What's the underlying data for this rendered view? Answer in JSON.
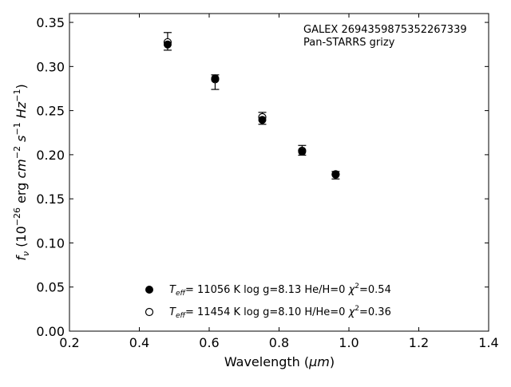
{
  "chart_data": {
    "type": "scatter",
    "xlabel_main": "Wavelength (",
    "xlabel_unit": "μm",
    "xlabel_end": ")",
    "ylabel": "f_ν (10^-26 erg cm^-2 s^-1 Hz^-1)",
    "xlim": [
      0.2,
      1.4
    ],
    "ylim": [
      0.0,
      0.36
    ],
    "xticks": [
      0.2,
      0.4,
      0.6,
      0.8,
      1.0,
      1.2,
      1.4
    ],
    "yticks": [
      0.0,
      0.05,
      0.1,
      0.15,
      0.2,
      0.25,
      0.3,
      0.35
    ],
    "grid": false,
    "annotation": [
      "GALEX 2694359875352267339",
      "Pan-STARRS grizy"
    ],
    "observed": {
      "x": [
        0.481,
        0.617,
        0.752,
        0.866,
        0.962
      ],
      "y": [
        0.3285,
        0.282,
        0.2415,
        0.2045,
        0.1765
      ],
      "yerr_low": [
        0.3185,
        0.274,
        0.2345,
        0.1995,
        0.1725
      ],
      "yerr_high": [
        0.3385,
        0.2905,
        0.248,
        0.2105,
        0.181
      ]
    },
    "series": [
      {
        "marker": "filled-circle",
        "x": [
          0.481,
          0.617,
          0.752,
          0.866,
          0.962
        ],
        "y": [
          0.325,
          0.2865,
          0.2395,
          0.2035,
          0.178
        ],
        "legend": {
          "teff": "= 11056 K  log g=8.13  He/H=0  ",
          "chi": "=0.54"
        }
      },
      {
        "marker": "open-circle",
        "x": [
          0.481,
          0.617,
          0.752,
          0.866,
          0.962
        ],
        "y": [
          0.3275,
          0.2855,
          0.2425,
          0.2045,
          0.1775
        ],
        "legend": {
          "teff": "= 11454 K  log g=8.10  H/He=0  ",
          "chi": "=0.36"
        }
      }
    ]
  }
}
